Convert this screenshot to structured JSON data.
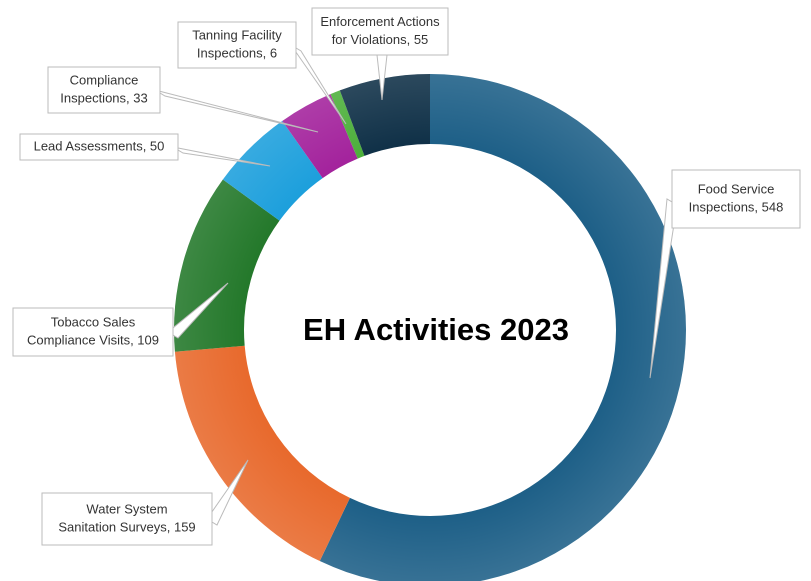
{
  "chart_data": {
    "type": "donut",
    "title": "EH Activities 2023",
    "values": [
      548,
      159,
      109,
      50,
      33,
      6,
      55
    ],
    "value_labels": [
      [
        "Food Service",
        "Inspections, 548"
      ],
      [
        "Water System",
        "Sanitation Surveys, 159"
      ],
      [
        "Tobacco Sales",
        "Compliance Visits, 109"
      ],
      [
        "Lead Assessments, 50"
      ],
      [
        "Compliance",
        "Inspections, 33"
      ],
      [
        "Tanning Facility",
        "Inspections, 6"
      ],
      [
        "Enforcement Actions",
        "for Violations, 55"
      ]
    ],
    "colors": [
      "#1d5f87",
      "#e8692c",
      "#23782a",
      "#1c9fdc",
      "#a3229c",
      "#4caf3a",
      "#0f3047"
    ]
  }
}
